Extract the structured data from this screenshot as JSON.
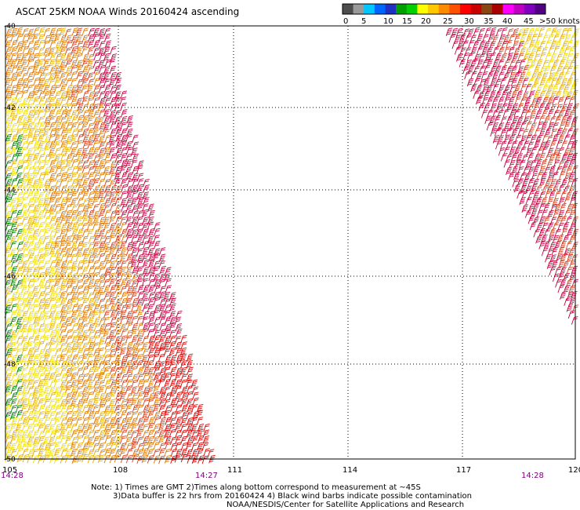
{
  "title": "ASCAT 25KM NOAA Winds 20160424 ascending",
  "legend": {
    "colors": [
      "#4d4d4d",
      "#9a9a9a",
      "#00c8ff",
      "#0064ff",
      "#2030c0",
      "#00a000",
      "#00d000",
      "#ffff00",
      "#ffc800",
      "#ff8c00",
      "#ff5000",
      "#ff0000",
      "#c80000",
      "#8b4513",
      "#aa0000",
      "#ff00ff",
      "#c000c0",
      "#8000c0",
      "#500080"
    ],
    "labels": [
      "0",
      "5",
      "10",
      "15",
      "20",
      "25",
      "30",
      "35",
      "40",
      "45",
      ">50 knots"
    ]
  },
  "latitude_labels": [
    "-40",
    "-42",
    "-44",
    "-46",
    "-48",
    "-50"
  ],
  "longitude_labels": [
    "105",
    "108",
    "111",
    "114",
    "117",
    "120"
  ],
  "time_labels": [
    "14:28",
    "14:27",
    "14:28"
  ],
  "time_color": "#800080",
  "barb_colors": {
    "yellow": "#f0e000",
    "gold": "#e8b000",
    "orange": "#e07800",
    "red_orange": "#d84020",
    "crimson": "#c8003c",
    "red": "#e00000",
    "green": "#008000"
  },
  "notes": [
    "Note: 1) Times are GMT 2)Times along bottom correspond to measurement at ~45S",
    "3)Data buffer is 22 hrs from 20160424 4) Black wind barbs indicate possible contamination",
    "NOAA/NESDIS/Center for Satellite Applications and Research"
  ]
}
